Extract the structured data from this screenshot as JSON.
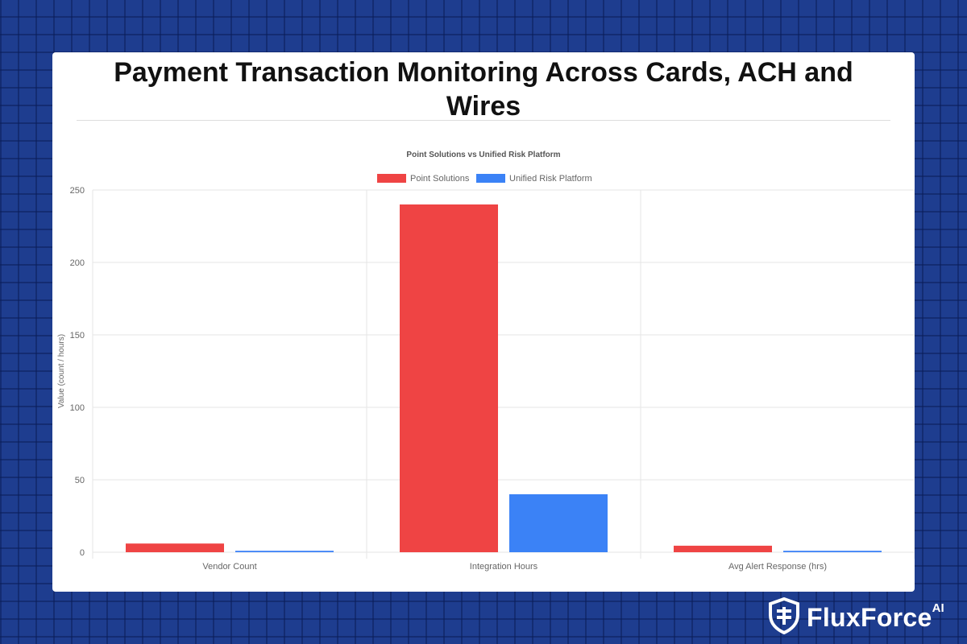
{
  "page": {
    "title": "Payment Transaction Monitoring Across Cards, ACH and Wires"
  },
  "brand": {
    "name": "FluxForce",
    "suffix": "AI",
    "icon": "shield-icon"
  },
  "colors": {
    "background": "#1e3d8f",
    "point_solutions": "#ef4444",
    "unified_platform": "#3b82f6"
  },
  "chart_data": {
    "type": "bar",
    "title": "Point Solutions vs Unified Risk Platform",
    "categories": [
      "Vendor Count",
      "Integration Hours",
      "Avg Alert Response (hrs)"
    ],
    "series": [
      {
        "name": "Point Solutions",
        "values": [
          6,
          240,
          4.5
        ],
        "color": "#ef4444"
      },
      {
        "name": "Unified Risk Platform",
        "values": [
          1,
          40,
          1
        ],
        "color": "#3b82f6"
      }
    ],
    "xlabel": "",
    "ylabel": "Value (count / hours)",
    "ylim": [
      0,
      250
    ],
    "yticks": [
      0,
      50,
      100,
      150,
      200,
      250
    ],
    "grid": true,
    "legend": "top-center"
  }
}
